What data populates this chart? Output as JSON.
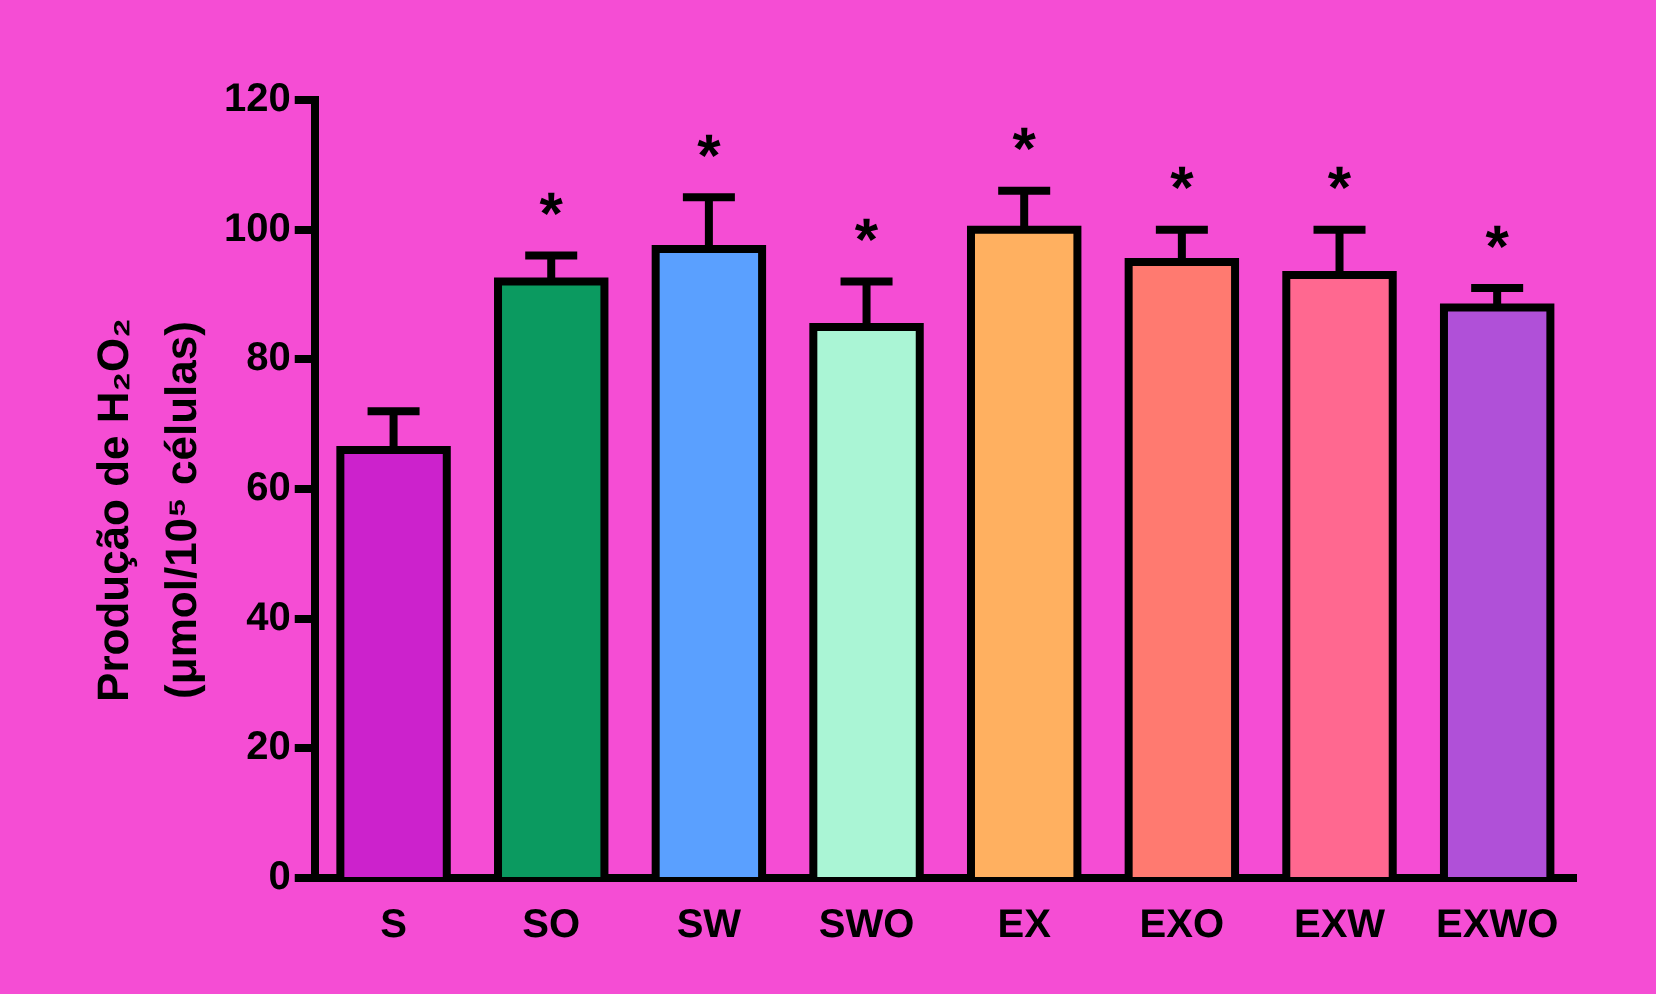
{
  "chart_data": {
    "type": "bar",
    "ylabel": "Produção de H₂O₂ (μmol/10⁵ células)",
    "categories": [
      "S",
      "SO",
      "SW",
      "SWO",
      "EX",
      "EXO",
      "EXW",
      "EXWO"
    ],
    "values": [
      66,
      92,
      97,
      85,
      100,
      95,
      93,
      88
    ],
    "errors": [
      6,
      4,
      8,
      7,
      6,
      5,
      7,
      3
    ],
    "colors": [
      "#cc22cc",
      "#0b9a60",
      "#5aa0ff",
      "#aaf5d5",
      "#ffb060",
      "#ff7a70",
      "#ff6890",
      "#b050d8"
    ],
    "ylim": [
      0,
      120
    ],
    "yticks": [
      0,
      20,
      40,
      60,
      80,
      100,
      120
    ],
    "grid": false,
    "legend": false,
    "annotations": [
      {
        "text": "*",
        "x": "SO",
        "y": 96
      },
      {
        "text": "*",
        "x": "SW",
        "y": 105
      },
      {
        "text": "*",
        "x": "SWO",
        "y": 92
      },
      {
        "text": "*",
        "x": "EX",
        "y": 106
      },
      {
        "text": "*",
        "x": "EXO",
        "y": 100
      },
      {
        "text": "*",
        "x": "EXW",
        "y": 100
      },
      {
        "text": "*",
        "x": "EXWO",
        "y": 91
      }
    ]
  }
}
